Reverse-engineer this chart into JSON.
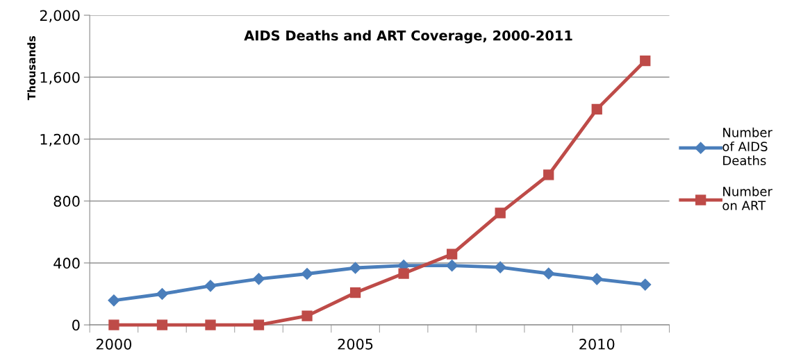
{
  "chart_data": {
    "type": "line",
    "title": "AIDS Deaths and ART Coverage, 2000-2011",
    "ylabel": "Thousands",
    "categories": [
      "2000",
      null,
      null,
      null,
      null,
      "2005",
      null,
      null,
      null,
      null,
      "2010",
      null
    ],
    "series": [
      {
        "name": "Number\nof AIDS\nDeaths",
        "color": "#4a7ebb",
        "marker": "diamond",
        "values": [
          158,
          200,
          252,
          297,
          330,
          368,
          383,
          383,
          372,
          332,
          296,
          260
        ]
      },
      {
        "name": "Number\non ART",
        "color": "#be4b48",
        "marker": "square",
        "values": [
          0,
          0,
          0,
          0,
          58,
          208,
          332,
          457,
          723,
          969,
          1393,
          1706
        ]
      }
    ],
    "ylim": [
      0,
      2000
    ],
    "yticks": [
      0,
      {
        "value": 400,
        "label": "400"
      },
      {
        "value": 800,
        "label": "800"
      },
      {
        "value": 1200,
        "label": "1,200"
      },
      {
        "value": 1600,
        "label": "1,600"
      },
      {
        "value": 2000,
        "label": "2,000"
      }
    ],
    "grid": "y",
    "legend": "right"
  }
}
